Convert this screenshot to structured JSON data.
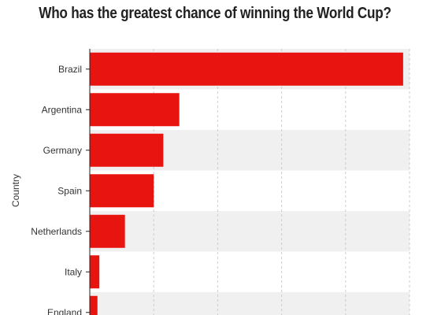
{
  "chart_data": {
    "type": "bar",
    "orientation": "horizontal",
    "title": "Who has the greatest chance of winning the World Cup?",
    "ylabel": "Country",
    "xlabel": "",
    "categories": [
      "Brazil",
      "Argentina",
      "Germany",
      "Spain",
      "Netherlands",
      "Italy",
      "England"
    ],
    "values": [
      49,
      14,
      11.5,
      10,
      5.5,
      1.5,
      1.2
    ],
    "xlim": [
      0,
      50
    ],
    "grid": true,
    "legend": "none",
    "colors": {
      "bar": "#e8140f",
      "band": "#f0f0f0",
      "grid": "#cccccc",
      "axis": "#222222"
    }
  }
}
